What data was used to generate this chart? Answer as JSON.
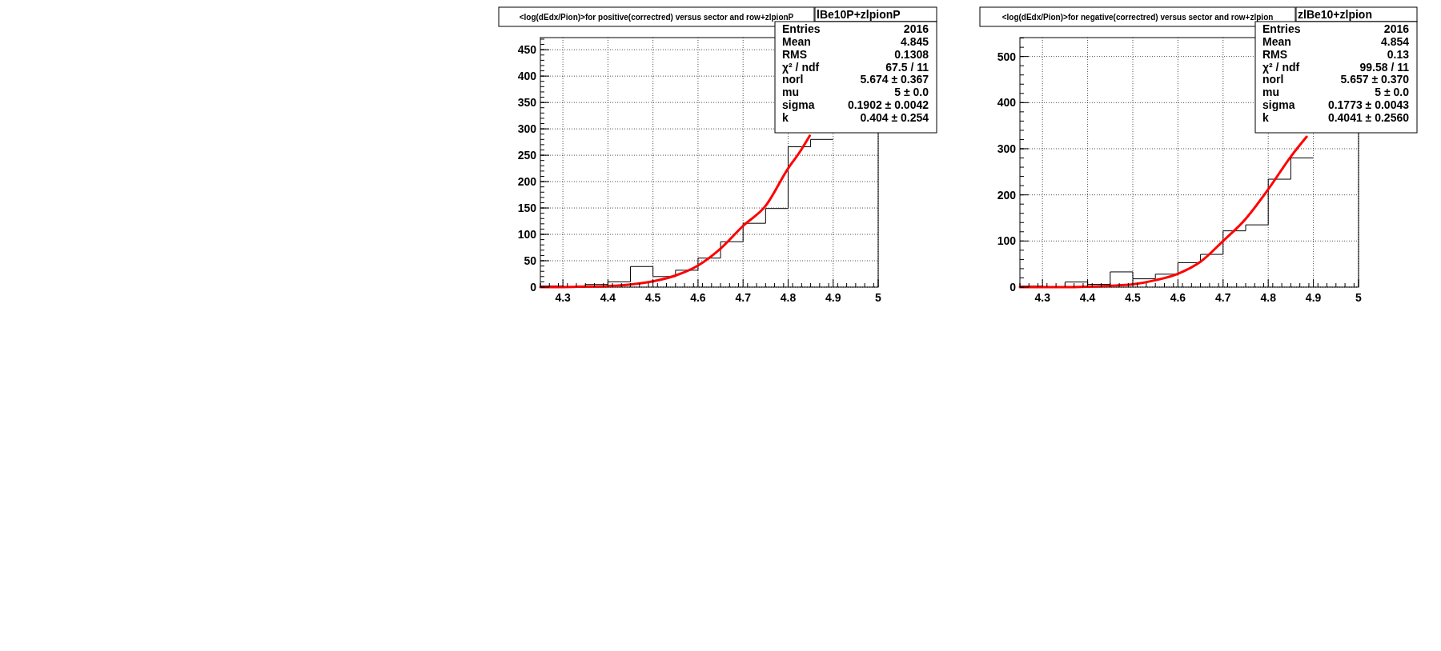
{
  "chart_data": [
    {
      "type": "histogram",
      "title": "<log(dEdx/Pion)>for positive(correctred) versus sector and row+zlpionP",
      "subtitle": "lBe10P+zlpionP",
      "annotations": [
        "Entries",
        "2016",
        "Mean",
        "4.845",
        "RMS",
        "0.1308",
        "χ² / ndf",
        "67.5 / 11",
        "norl",
        "5.674 ± 0.367",
        "mu",
        "5 ± 0.0",
        "sigma",
        "0.1902 ± 0.0042",
        "k",
        "0.404 ± 0.254"
      ],
      "bins": [
        4.25,
        4.3,
        4.35,
        4.4,
        4.45,
        4.5,
        4.55,
        4.6,
        4.65,
        4.7,
        4.75,
        4.8,
        4.85,
        4.9
      ],
      "xlim": [
        4.25,
        5
      ],
      "xticks": [
        4.3,
        4.4,
        4.5,
        4.6,
        4.7,
        4.8,
        4.9,
        5
      ],
      "ylim": [
        0,
        473
      ],
      "yticks": [
        0,
        50,
        100,
        150,
        200,
        250,
        300,
        350,
        400,
        450
      ],
      "grid": true,
      "series": [
        {
          "color": "#000000",
          "values": [
            2,
            0,
            5,
            10,
            39,
            20,
            32,
            55,
            86,
            121,
            149,
            266,
            280
          ]
        },
        {
          "type": "line",
          "color": "#ff0000",
          "x": [
            4.25,
            4.3,
            4.35,
            4.4,
            4.45,
            4.5,
            4.55,
            4.6,
            4.65,
            4.7,
            4.75,
            4.8,
            4.825,
            4.848
          ],
          "values": [
            0,
            0,
            1,
            2,
            5,
            11,
            22,
            41,
            73,
            116,
            154,
            225,
            255,
            287
          ]
        }
      ]
    },
    {
      "type": "histogram",
      "title": "<log(dEdx/Pion)>for negative(correctred) versus sector and row+zlpion",
      "subtitle": "zlBe10+zlpion",
      "annotations": [
        "Entries",
        "2016",
        "Mean",
        "4.854",
        "RMS",
        "0.13",
        "χ² / ndf",
        "99.58 / 11",
        "norl",
        "5.657 ± 0.370",
        "mu",
        "5 ± 0.0",
        "sigma",
        "0.1773 ± 0.0043",
        "k",
        "0.4041 ± 0.2560"
      ],
      "bins": [
        4.25,
        4.3,
        4.35,
        4.4,
        4.45,
        4.5,
        4.55,
        4.6,
        4.65,
        4.7,
        4.75,
        4.8,
        4.85,
        4.9
      ],
      "xlim": [
        4.25,
        5
      ],
      "xticks": [
        4.3,
        4.4,
        4.5,
        4.6,
        4.7,
        4.8,
        4.9,
        5
      ],
      "ylim": [
        0,
        541
      ],
      "yticks": [
        0,
        100,
        200,
        300,
        400,
        500
      ],
      "grid": true,
      "series": [
        {
          "color": "#000000",
          "values": [
            2,
            0,
            11,
            6,
            33,
            18,
            28,
            53,
            71,
            122,
            135,
            234,
            280
          ]
        },
        {
          "type": "line",
          "color": "#ff0000",
          "x": [
            4.25,
            4.3,
            4.35,
            4.4,
            4.45,
            4.5,
            4.55,
            4.6,
            4.65,
            4.7,
            4.75,
            4.8,
            4.85,
            4.885
          ],
          "values": [
            0,
            0,
            0,
            1,
            3,
            6,
            15,
            29,
            55,
            100,
            148,
            212,
            283,
            326
          ]
        }
      ]
    }
  ]
}
